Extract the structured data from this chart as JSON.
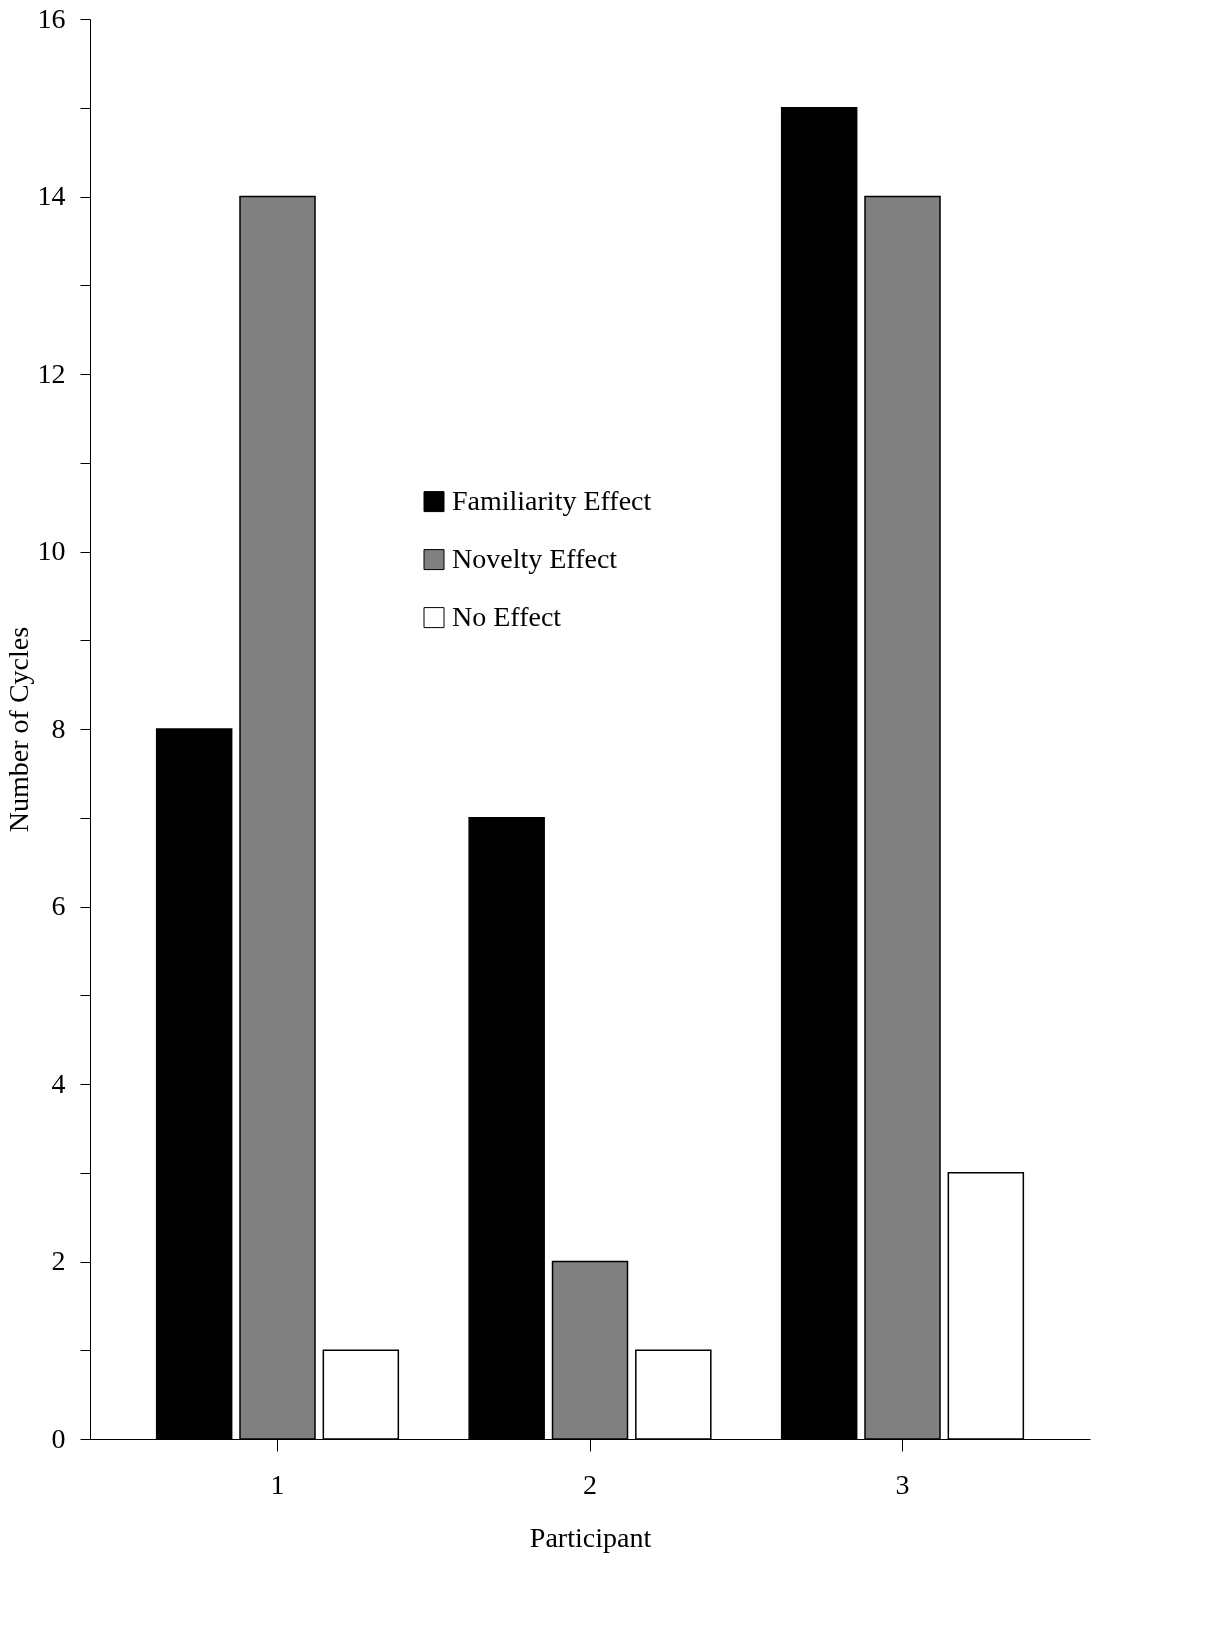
{
  "chart_data": {
    "type": "bar",
    "xlabel": "Participant",
    "ylabel": "Number of Cycles",
    "categories": [
      "1",
      "2",
      "3"
    ],
    "series": [
      {
        "name": "Familiarity Effect",
        "color": "#000000",
        "values": [
          8,
          7,
          15
        ]
      },
      {
        "name": "Novelty Effect",
        "color": "#808080",
        "values": [
          14,
          2,
          14
        ]
      },
      {
        "name": "No Effect",
        "color": "#ffffff",
        "values": [
          1,
          1,
          3
        ]
      }
    ],
    "ylim": [
      0,
      16
    ],
    "yticks": [
      0,
      {
        "value": 1,
        "label": null
      },
      2,
      {
        "value": 3,
        "label": null
      },
      4,
      {
        "value": 5,
        "label": null
      },
      6,
      {
        "value": 7,
        "label": null
      },
      8,
      {
        "value": 9,
        "label": null
      },
      10,
      {
        "value": 11,
        "label": null
      },
      12,
      {
        "value": 13,
        "label": null
      },
      14,
      {
        "value": 15,
        "label": null
      },
      16
    ],
    "grid": false,
    "legend": "center"
  }
}
